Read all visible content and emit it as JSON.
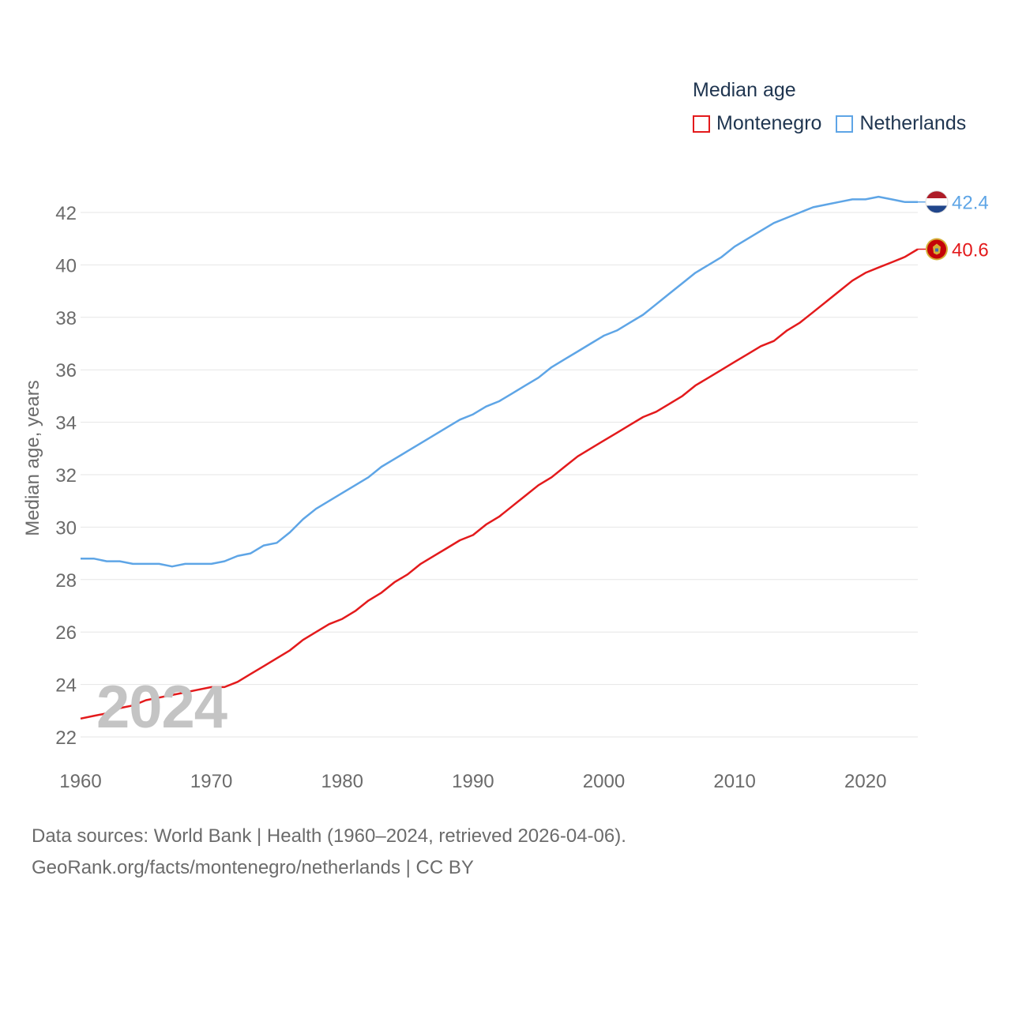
{
  "legend": {
    "title": "Median age",
    "items": [
      {
        "label": "Montenegro",
        "color": "#e31a1c"
      },
      {
        "label": "Netherlands",
        "color": "#5ea5e6"
      }
    ]
  },
  "watermark_year": "2024",
  "footer": {
    "line1": "Data sources: World Bank | Health (1960–2024, retrieved 2026-04-06).",
    "line2": "GeoRank.org/facts/montenegro/netherlands | CC BY"
  },
  "chart_data": {
    "type": "line",
    "title": "Median age",
    "xlabel": "",
    "ylabel": "Median age, years",
    "xlim": [
      1960,
      2024
    ],
    "ylim": [
      22,
      43
    ],
    "xticks": [
      1960,
      1970,
      1980,
      1990,
      2000,
      2010,
      2020
    ],
    "yticks": [
      22,
      24,
      26,
      28,
      30,
      32,
      34,
      36,
      38,
      40,
      42
    ],
    "grid": true,
    "legend_position": "top-right",
    "x": [
      1960,
      1961,
      1962,
      1963,
      1964,
      1965,
      1966,
      1967,
      1968,
      1969,
      1970,
      1971,
      1972,
      1973,
      1974,
      1975,
      1976,
      1977,
      1978,
      1979,
      1980,
      1981,
      1982,
      1983,
      1984,
      1985,
      1986,
      1987,
      1988,
      1989,
      1990,
      1991,
      1992,
      1993,
      1994,
      1995,
      1996,
      1997,
      1998,
      1999,
      2000,
      2001,
      2002,
      2003,
      2004,
      2005,
      2006,
      2007,
      2008,
      2009,
      2010,
      2011,
      2012,
      2013,
      2014,
      2015,
      2016,
      2017,
      2018,
      2019,
      2020,
      2021,
      2022,
      2023,
      2024
    ],
    "series": [
      {
        "name": "Montenegro",
        "color": "#e31a1c",
        "end_label": "40.6",
        "values": [
          22.7,
          22.8,
          22.9,
          23.1,
          23.2,
          23.4,
          23.5,
          23.6,
          23.7,
          23.8,
          23.9,
          23.9,
          24.1,
          24.4,
          24.7,
          25.0,
          25.3,
          25.7,
          26.0,
          26.3,
          26.5,
          26.8,
          27.2,
          27.5,
          27.9,
          28.2,
          28.6,
          28.9,
          29.2,
          29.5,
          29.7,
          30.1,
          30.4,
          30.8,
          31.2,
          31.6,
          31.9,
          32.3,
          32.7,
          33.0,
          33.3,
          33.6,
          33.9,
          34.2,
          34.4,
          34.7,
          35.0,
          35.4,
          35.7,
          36.0,
          36.3,
          36.6,
          36.9,
          37.1,
          37.5,
          37.8,
          38.2,
          38.6,
          39.0,
          39.4,
          39.7,
          39.9,
          40.1,
          40.3,
          40.6
        ]
      },
      {
        "name": "Netherlands",
        "color": "#5ea5e6",
        "end_label": "42.4",
        "values": [
          28.8,
          28.8,
          28.7,
          28.7,
          28.6,
          28.6,
          28.6,
          28.5,
          28.6,
          28.6,
          28.6,
          28.7,
          28.9,
          29.0,
          29.3,
          29.4,
          29.8,
          30.3,
          30.7,
          31.0,
          31.3,
          31.6,
          31.9,
          32.3,
          32.6,
          32.9,
          33.2,
          33.5,
          33.8,
          34.1,
          34.3,
          34.6,
          34.8,
          35.1,
          35.4,
          35.7,
          36.1,
          36.4,
          36.7,
          37.0,
          37.3,
          37.5,
          37.8,
          38.1,
          38.5,
          38.9,
          39.3,
          39.7,
          40.0,
          40.3,
          40.7,
          41.0,
          41.3,
          41.6,
          41.8,
          42.0,
          42.2,
          42.3,
          42.4,
          42.5,
          42.5,
          42.6,
          42.5,
          42.4,
          42.4
        ]
      }
    ]
  }
}
